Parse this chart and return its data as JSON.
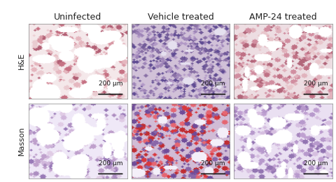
{
  "col_titles": [
    "Uninfected",
    "Vehicle treated",
    "AMP-24 treated"
  ],
  "row_labels": [
    "H&E",
    "Masson"
  ],
  "scale_bar_text": "200 μm",
  "fig_width": 4.8,
  "fig_height": 2.6,
  "dpi": 100,
  "background_color": "#ffffff",
  "title_fontsize": 9,
  "row_label_fontsize": 8,
  "scalebar_fontsize": 6.5,
  "scalebar_color": "#111111"
}
